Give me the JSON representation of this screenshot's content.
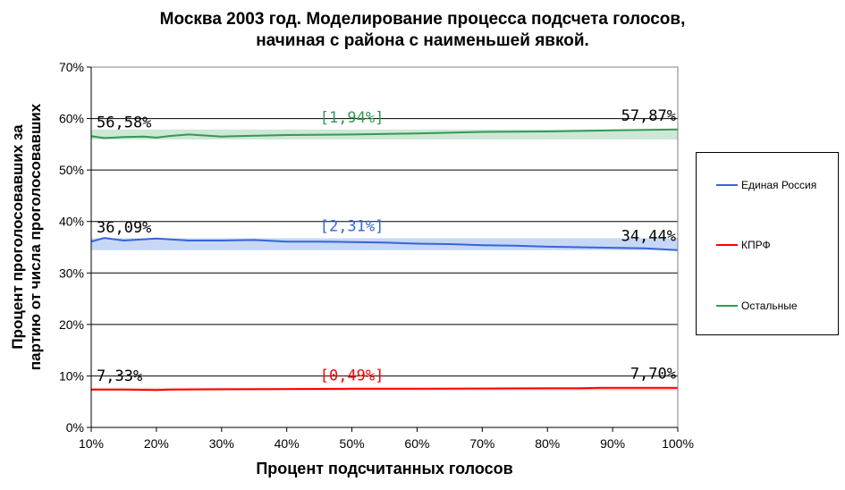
{
  "chart_data": {
    "type": "line",
    "title_line1": "Москва 2003 год. Моделирование процесса подсчета голосов,",
    "title_line2": "начиная с района с наименьшей явкой.",
    "ylabel_line1": "Процент проголосовавших за",
    "ylabel_line2": "партию от числа проголосовавших",
    "xlabel": "Процент подсчитанных голосов",
    "x_ticks": [
      "10%",
      "20%",
      "30%",
      "40%",
      "50%",
      "60%",
      "70%",
      "80%",
      "90%",
      "100%"
    ],
    "y_ticks": [
      "0%",
      "10%",
      "20%",
      "30%",
      "40%",
      "50%",
      "60%",
      "70%"
    ],
    "xlim": [
      10,
      100
    ],
    "ylim": [
      0,
      70
    ],
    "grid": true,
    "legend_position": "right",
    "series": [
      {
        "name": "Единая Россия",
        "color": "#3366dd",
        "band_color": "#c7d7f5",
        "band": [
          34.44,
          36.75
        ],
        "x": [
          10,
          12,
          15,
          20,
          25,
          30,
          35,
          40,
          45,
          50,
          55,
          60,
          65,
          70,
          75,
          80,
          85,
          90,
          95,
          100
        ],
        "y": [
          36.09,
          36.8,
          36.3,
          36.7,
          36.3,
          36.3,
          36.4,
          36.1,
          36.1,
          36.0,
          35.9,
          35.7,
          35.6,
          35.4,
          35.3,
          35.1,
          35.0,
          34.9,
          34.8,
          34.44
        ],
        "start_label": "36,09%",
        "end_label": "34,44%",
        "range_label": "[2,31%]"
      },
      {
        "name": "КПРФ",
        "color": "#ff0000",
        "band_color": "#f7caca",
        "band": [
          7.21,
          7.7
        ],
        "x": [
          10,
          15,
          18,
          20,
          22,
          30,
          40,
          50,
          60,
          70,
          80,
          85,
          88,
          90,
          100
        ],
        "y": [
          7.33,
          7.35,
          7.3,
          7.25,
          7.35,
          7.4,
          7.45,
          7.5,
          7.5,
          7.55,
          7.6,
          7.6,
          7.7,
          7.7,
          7.7
        ],
        "start_label": "7,33%",
        "end_label": "7,70%",
        "range_label": "[0,49%]"
      },
      {
        "name": "Остальные",
        "color": "#339955",
        "band_color": "#cde8d5",
        "band": [
          55.93,
          57.87
        ],
        "x": [
          10,
          12,
          15,
          18,
          20,
          22,
          25,
          30,
          40,
          50,
          60,
          70,
          80,
          90,
          100
        ],
        "y": [
          56.58,
          56.2,
          56.4,
          56.5,
          56.3,
          56.6,
          56.9,
          56.5,
          56.8,
          56.9,
          57.1,
          57.4,
          57.5,
          57.7,
          57.87
        ],
        "start_label": "56,58%",
        "end_label": "57,87%",
        "range_label": "[1,94%]"
      }
    ]
  }
}
